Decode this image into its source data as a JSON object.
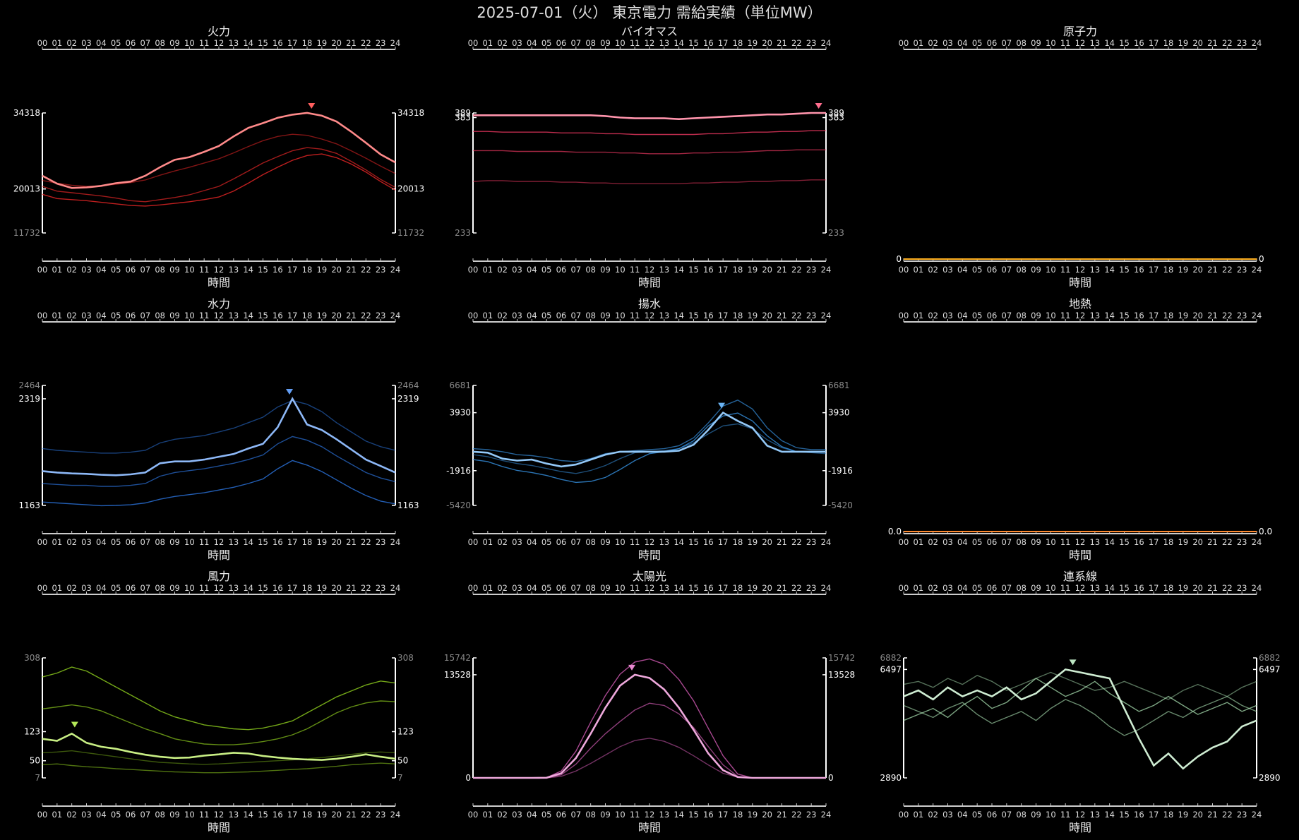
{
  "title": "2025-07-01（火） 東京電力 需給実績（単位MW）",
  "xlabel": "時間",
  "hours": [
    "00",
    "01",
    "02",
    "03",
    "04",
    "05",
    "06",
    "07",
    "08",
    "09",
    "10",
    "11",
    "12",
    "13",
    "14",
    "15",
    "16",
    "17",
    "18",
    "19",
    "20",
    "21",
    "22",
    "23",
    "24"
  ],
  "chart_data": [
    {
      "id": "thermal",
      "type": "line",
      "title": "火力",
      "color": "#ff2a2a",
      "ticks": [
        {
          "v": 34318,
          "t": "34318",
          "w": true
        },
        {
          "v": 20013,
          "t": "20013",
          "w": true
        },
        {
          "v": 11732,
          "t": "11732",
          "w": false
        }
      ],
      "ylim": [
        11732,
        34318
      ],
      "peak": {
        "x": 18.3,
        "v": 34318
      },
      "current": [
        22500,
        21000,
        20200,
        20300,
        20600,
        21100,
        21400,
        22500,
        24100,
        25500,
        26000,
        27000,
        28100,
        29900,
        31500,
        32400,
        33400,
        34000,
        34318,
        33800,
        32700,
        30800,
        28700,
        26500,
        25000
      ],
      "past": [
        [
          19000,
          18200,
          18000,
          17800,
          17500,
          17200,
          16900,
          16800,
          17000,
          17300,
          17600,
          18000,
          18500,
          19600,
          21100,
          22700,
          24100,
          25400,
          26300,
          26600,
          25900,
          24700,
          23200,
          21400,
          19800
        ],
        [
          20500,
          19600,
          19300,
          19000,
          18700,
          18300,
          17800,
          17600,
          18000,
          18400,
          18900,
          19700,
          20500,
          21900,
          23400,
          24900,
          26100,
          27200,
          27800,
          27500,
          26700,
          25200,
          23600,
          21800,
          20300
        ],
        [
          21600,
          21100,
          20700,
          20500,
          20600,
          20900,
          21200,
          21700,
          22600,
          23400,
          24100,
          24900,
          25700,
          26800,
          28000,
          29100,
          29900,
          30300,
          30100,
          29400,
          28500,
          27200,
          25800,
          24300,
          22900
        ]
      ]
    },
    {
      "id": "biomass",
      "type": "line",
      "title": "バイオマス",
      "color": "#ff3c68",
      "ticks": [
        {
          "v": 389,
          "t": "389",
          "w": true
        },
        {
          "v": 383,
          "t": "383",
          "w": true
        },
        {
          "v": 233,
          "t": "233",
          "w": false
        }
      ],
      "ylim": [
        233,
        389
      ],
      "peak": {
        "x": 23.5,
        "v": 389
      },
      "current": [
        386,
        386,
        386,
        386,
        386,
        386,
        386,
        386,
        386,
        385,
        383,
        382,
        382,
        382,
        381,
        382,
        383,
        384,
        385,
        386,
        387,
        387,
        388,
        389,
        389
      ],
      "past": [
        [
          365,
          365,
          364,
          364,
          364,
          364,
          363,
          363,
          363,
          362,
          362,
          361,
          361,
          361,
          361,
          361,
          362,
          362,
          363,
          364,
          364,
          365,
          365,
          366,
          366
        ],
        [
          340,
          340,
          340,
          339,
          339,
          339,
          339,
          338,
          338,
          338,
          337,
          337,
          336,
          336,
          336,
          337,
          337,
          338,
          338,
          339,
          340,
          340,
          341,
          341,
          341
        ],
        [
          300,
          301,
          301,
          300,
          300,
          300,
          299,
          299,
          298,
          298,
          297,
          297,
          297,
          297,
          297,
          298,
          298,
          299,
          299,
          300,
          300,
          301,
          301,
          302,
          302
        ]
      ]
    },
    {
      "id": "nuclear",
      "type": "line",
      "title": "原子力",
      "color": "#ffb020",
      "ticks": [
        {
          "v": 0,
          "t": "0",
          "w": true
        }
      ],
      "ylim": [
        0,
        1
      ],
      "flat": true,
      "current": [
        0,
        0,
        0,
        0,
        0,
        0,
        0,
        0,
        0,
        0,
        0,
        0,
        0,
        0,
        0,
        0,
        0,
        0,
        0,
        0,
        0,
        0,
        0,
        0,
        0
      ],
      "past": []
    },
    {
      "id": "hydro",
      "type": "line",
      "title": "水力",
      "color": "#2f7df0",
      "ticks": [
        {
          "v": 2464,
          "t": "2464",
          "w": false
        },
        {
          "v": 2319,
          "t": "2319",
          "w": true
        },
        {
          "v": 1163,
          "t": "1163",
          "w": true
        }
      ],
      "ylim": [
        1163,
        2464
      ],
      "peak": {
        "x": 16.8,
        "v": 2319
      },
      "current": [
        1535,
        1520,
        1510,
        1505,
        1495,
        1490,
        1500,
        1520,
        1620,
        1640,
        1640,
        1660,
        1690,
        1720,
        1780,
        1830,
        2010,
        2319,
        2040,
        1980,
        1880,
        1770,
        1660,
        1590,
        1520
      ],
      "past": [
        [
          1200,
          1190,
          1180,
          1170,
          1160,
          1163,
          1170,
          1190,
          1230,
          1260,
          1280,
          1300,
          1330,
          1360,
          1400,
          1450,
          1560,
          1650,
          1600,
          1530,
          1440,
          1350,
          1270,
          1210,
          1180
        ],
        [
          1400,
          1390,
          1380,
          1380,
          1370,
          1370,
          1380,
          1400,
          1480,
          1520,
          1540,
          1560,
          1590,
          1620,
          1660,
          1710,
          1830,
          1910,
          1870,
          1800,
          1700,
          1610,
          1520,
          1460,
          1420
        ],
        [
          1780,
          1760,
          1750,
          1740,
          1730,
          1730,
          1740,
          1760,
          1840,
          1880,
          1900,
          1920,
          1960,
          2000,
          2060,
          2120,
          2230,
          2300,
          2260,
          2180,
          2060,
          1960,
          1860,
          1800,
          1760
        ]
      ]
    },
    {
      "id": "pumped",
      "type": "line",
      "title": "揚水",
      "color": "#3a9bf0",
      "ticks": [
        {
          "v": 6681,
          "t": "6681",
          "w": false
        },
        {
          "v": 3930,
          "t": "3930",
          "w": true
        },
        {
          "v": -1916,
          "t": "-1916",
          "w": true
        },
        {
          "v": -5420,
          "t": "-5420",
          "w": false
        }
      ],
      "ylim": [
        -5420,
        6681
      ],
      "peak": {
        "x": 16.9,
        "v": 3930
      },
      "current": [
        0,
        -100,
        -700,
        -900,
        -800,
        -1200,
        -1500,
        -1300,
        -800,
        -300,
        0,
        0,
        0,
        0,
        100,
        700,
        2200,
        3930,
        3100,
        2400,
        600,
        0,
        0,
        0,
        0
      ],
      "past": [
        [
          -800,
          -1000,
          -1500,
          -1900,
          -2100,
          -2400,
          -2800,
          -3100,
          -3000,
          -2600,
          -1800,
          -900,
          -200,
          0,
          300,
          1100,
          2600,
          3600,
          3900,
          3100,
          1600,
          500,
          0,
          0,
          0
        ],
        [
          300,
          200,
          0,
          -300,
          -400,
          -600,
          -900,
          -1000,
          -700,
          -200,
          0,
          100,
          200,
          300,
          600,
          1400,
          2900,
          4600,
          5200,
          4300,
          2400,
          1100,
          400,
          200,
          200
        ],
        [
          -300,
          -500,
          -900,
          -1200,
          -1400,
          -1700,
          -2000,
          -2200,
          -1900,
          -1400,
          -700,
          -100,
          0,
          100,
          300,
          900,
          1800,
          2600,
          2800,
          2300,
          1200,
          400,
          0,
          -100,
          -200
        ]
      ]
    },
    {
      "id": "geothermal",
      "type": "line",
      "title": "地熱",
      "color": "#ff8a30",
      "ticks": [
        {
          "v": 0,
          "t": "0.0",
          "w": true
        }
      ],
      "ylim": [
        0,
        1
      ],
      "flat": true,
      "current": [
        0,
        0,
        0,
        0,
        0,
        0,
        0,
        0,
        0,
        0,
        0,
        0,
        0,
        0,
        0,
        0,
        0,
        0,
        0,
        0,
        0,
        0,
        0,
        0,
        0
      ],
      "past": []
    },
    {
      "id": "wind",
      "type": "line",
      "title": "風力",
      "color": "#9be020",
      "ticks": [
        {
          "v": 308,
          "t": "308",
          "w": false
        },
        {
          "v": 123,
          "t": "123",
          "w": true
        },
        {
          "v": 50,
          "t": "50",
          "w": true
        },
        {
          "v": 7,
          "t": "7",
          "w": false
        }
      ],
      "ylim": [
        7,
        308
      ],
      "peak": {
        "x": 2.2,
        "v": 123
      },
      "current": [
        105,
        100,
        118,
        95,
        85,
        80,
        72,
        65,
        60,
        57,
        58,
        63,
        66,
        70,
        68,
        62,
        58,
        55,
        53,
        52,
        55,
        60,
        66,
        60,
        55
      ],
      "past": [
        [
          260,
          270,
          285,
          275,
          255,
          235,
          215,
          195,
          175,
          160,
          150,
          140,
          135,
          130,
          128,
          132,
          140,
          150,
          170,
          190,
          210,
          225,
          240,
          250,
          245
        ],
        [
          180,
          185,
          190,
          185,
          175,
          160,
          145,
          130,
          118,
          105,
          98,
          92,
          90,
          90,
          93,
          98,
          105,
          115,
          130,
          150,
          170,
          185,
          195,
          200,
          198
        ],
        [
          40,
          42,
          38,
          35,
          33,
          30,
          28,
          26,
          24,
          22,
          21,
          20,
          20,
          21,
          22,
          24,
          26,
          28,
          30,
          33,
          36,
          40,
          42,
          44,
          42
        ],
        [
          70,
          72,
          75,
          70,
          65,
          60,
          55,
          50,
          46,
          44,
          42,
          41,
          42,
          44,
          46,
          48,
          50,
          52,
          55,
          58,
          62,
          66,
          70,
          72,
          70
        ]
      ]
    },
    {
      "id": "solar",
      "type": "line",
      "title": "太陽光",
      "color": "#e060c0",
      "ticks": [
        {
          "v": 15742,
          "t": "15742",
          "w": false
        },
        {
          "v": 13528,
          "t": "13528",
          "w": true
        },
        {
          "v": 0,
          "t": "0",
          "w": true
        }
      ],
      "ylim": [
        0,
        15742
      ],
      "peak": {
        "x": 10.8,
        "v": 13528
      },
      "current": [
        0,
        0,
        0,
        0,
        0,
        20,
        600,
        2600,
        5800,
        9200,
        12100,
        13528,
        13100,
        11600,
        9200,
        6300,
        3200,
        1000,
        100,
        0,
        0,
        0,
        0,
        0,
        0
      ],
      "past": [
        [
          0,
          0,
          0,
          0,
          0,
          30,
          900,
          3500,
          7300,
          10800,
          13600,
          15200,
          15600,
          14900,
          12900,
          10100,
          6500,
          2900,
          500,
          0,
          0,
          0,
          0,
          0,
          0
        ],
        [
          0,
          0,
          0,
          0,
          0,
          10,
          400,
          1800,
          3900,
          5800,
          7400,
          8900,
          9800,
          9500,
          8400,
          6600,
          4100,
          1700,
          200,
          0,
          0,
          0,
          0,
          0,
          0
        ],
        [
          0,
          0,
          0,
          0,
          0,
          0,
          200,
          900,
          1900,
          3000,
          4100,
          4900,
          5200,
          4800,
          4000,
          2900,
          1700,
          600,
          100,
          0,
          0,
          0,
          0,
          0,
          0
        ]
      ]
    },
    {
      "id": "interconnect",
      "type": "line",
      "title": "連系線",
      "color": "#a6dcae",
      "ticks": [
        {
          "v": 6882,
          "t": "6882",
          "w": false
        },
        {
          "v": 6497,
          "t": "6497",
          "w": true
        },
        {
          "v": 2890,
          "t": "2890",
          "w": true
        }
      ],
      "ylim": [
        2890,
        6882
      ],
      "peak": {
        "x": 11.5,
        "v": 6497
      },
      "current": [
        5600,
        5800,
        5500,
        5900,
        5600,
        5800,
        5600,
        5900,
        5500,
        5700,
        6100,
        6497,
        6400,
        6300,
        6200,
        5200,
        4200,
        3300,
        3700,
        3200,
        3600,
        3900,
        4100,
        4600,
        4800
      ],
      "past": [
        [
          4800,
          5000,
          5200,
          4900,
          5300,
          5600,
          5200,
          5400,
          5800,
          6200,
          5900,
          5600,
          5800,
          6100,
          5700,
          5400,
          5100,
          5300,
          5600,
          5300,
          5000,
          5200,
          5400,
          5100,
          5300
        ],
        [
          5300,
          5100,
          4900,
          5200,
          5400,
          5000,
          4700,
          4900,
          5100,
          4800,
          5200,
          5500,
          5300,
          5000,
          4600,
          4300,
          4500,
          4800,
          5100,
          4900,
          5200,
          5400,
          5600,
          5300,
          5100
        ],
        [
          6000,
          6100,
          5900,
          6200,
          6000,
          6300,
          6100,
          5800,
          6000,
          6200,
          6400,
          6200,
          6000,
          5800,
          5900,
          6100,
          5900,
          5700,
          5500,
          5800,
          6000,
          5800,
          5600,
          5900,
          6100
        ]
      ]
    }
  ]
}
